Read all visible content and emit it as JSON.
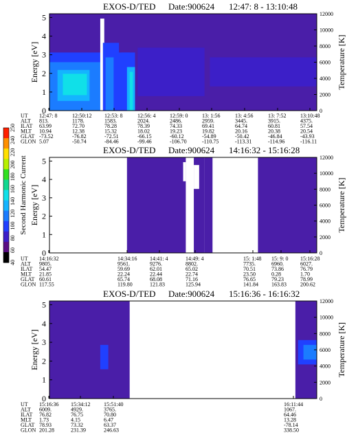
{
  "colorbar": {
    "label": "Second Harmonic Current",
    "ticks": [
      "40",
      "60",
      "80",
      "100",
      "120",
      "140",
      "160",
      "180",
      "200",
      "220",
      "240",
      "250"
    ],
    "colors": [
      "#000000",
      "#5a0e84",
      "#3c1fc8",
      "#2040ff",
      "#1b7cff",
      "#14b4ff",
      "#10e0e8",
      "#10d890",
      "#30e020",
      "#b8f000",
      "#ffe000",
      "#ff9000",
      "#ff2000"
    ]
  },
  "chart_data": [
    {
      "type": "heatmap",
      "title": "EXOS-D/TED",
      "date": "Date:900624",
      "time_range": "12:47: 8 - 13:10:48",
      "ylabel": "Energy [eV]",
      "y2label": "Temperature [K]",
      "y_ticks": [
        "0",
        "1",
        "2",
        "3",
        "4",
        "5"
      ],
      "ylim": [
        0,
        5.2
      ],
      "y2_ticks": [
        "0",
        "2000",
        "4000",
        "6000",
        "8000",
        "10000",
        "12000"
      ],
      "y2lim": [
        0,
        12000
      ],
      "orbit_rows": [
        "UT",
        "ALT",
        "ILAT",
        "MLT",
        "GLAT",
        "GLON"
      ],
      "orbit_columns": [
        {
          "values": [
            "12:47: 8",
            "813.",
            "63.99",
            "10.94",
            "-73.52",
            "5.07"
          ]
        },
        {
          "values": [
            "12:50:12",
            "1178.",
            "72.70",
            "12.38",
            "-76.82",
            "-50.74"
          ]
        },
        {
          "values": [
            "12:53: 8",
            "1583.",
            "78.28",
            "15.32",
            "-72.51",
            "-84.46"
          ]
        },
        {
          "values": [
            "12:56: 4",
            "2024.",
            "78.39",
            "18.02",
            "-66.15",
            "-99.46"
          ]
        },
        {
          "values": [
            "12:59: 0",
            "2486.",
            "74.33",
            "19.23",
            "-60.12",
            "-106.70"
          ]
        },
        {
          "values": [
            "13: 1:56",
            "2959.",
            "69.41",
            "19.82",
            "-54.89",
            "-110.75"
          ]
        },
        {
          "values": [
            "13: 4:56",
            "3445.",
            "64.74",
            "20.16",
            "-50.42",
            "-113.31"
          ]
        },
        {
          "values": [
            "13: 7:52",
            "3915.",
            "60.81",
            "20.38",
            "-46.84",
            "-114.96"
          ]
        },
        {
          "values": [
            "13:10:48",
            "4375.",
            "57.54",
            "20.54",
            "-43.93",
            "-116.11"
          ]
        }
      ]
    },
    {
      "type": "heatmap",
      "title": "EXOS-D/TED",
      "date": "Date:900624",
      "time_range": "14:16:32 - 15:16:28",
      "ylabel": "Energy [eV]",
      "y2label": "Temperature [K]",
      "y_ticks": [
        "0",
        "1",
        "2",
        "3",
        "4",
        "5"
      ],
      "ylim": [
        0,
        5.2
      ],
      "y2_ticks": [
        "0",
        "2000",
        "4000",
        "6000",
        "8000",
        "10000",
        "12000"
      ],
      "y2lim": [
        0,
        12000
      ],
      "orbit_rows": [
        "UT",
        "ALT",
        "ILAT",
        "MLT",
        "GLAT",
        "GLON"
      ],
      "orbit_columns": [
        {
          "values": [
            "14:16:32",
            "9805.",
            "54.47",
            "21.85",
            "60.61",
            "117.55"
          ]
        },
        {
          "values": [
            "14:34:16",
            "9561.",
            "59.69",
            "22.24",
            "65.74",
            "119.80"
          ]
        },
        {
          "values": [
            "14:41: 4",
            "9276.",
            "62.01",
            "22.44",
            "68.08",
            "121.83"
          ]
        },
        {
          "values": [
            "14:49: 4",
            "8802.",
            "65.02",
            "22.74",
            "71.16",
            "125.94"
          ]
        },
        {
          "values": [
            "15: 1:48",
            "7735.",
            "70.51",
            "23.50",
            "76.65",
            "141.84"
          ]
        },
        {
          "values": [
            "15: 9: 0",
            "6960.",
            "73.86",
            "0.28",
            "79.23",
            "163.83"
          ]
        },
        {
          "values": [
            "15:16:28",
            "6027.",
            "76.79",
            "1.70",
            "78.99",
            "200.62"
          ]
        }
      ]
    },
    {
      "type": "heatmap",
      "title": "EXOS-D/TED",
      "date": "Date:900624",
      "time_range": "15:16:36 - 16:16:32",
      "ylabel": "Energy [eV]",
      "y2label": "Temperature [K]",
      "y_ticks": [
        "0",
        "1",
        "2",
        "3",
        "4",
        "5"
      ],
      "ylim": [
        0,
        5.2
      ],
      "y2_ticks": [
        "0",
        "2000",
        "4000",
        "6000",
        "8000",
        "10000",
        "12000"
      ],
      "y2lim": [
        0,
        12000
      ],
      "orbit_rows": [
        "UT",
        "ALT",
        "ILAT",
        "MLT",
        "GLAT",
        "GLON"
      ],
      "orbit_columns": [
        {
          "values": [
            "15:16:36",
            "6009.",
            "76.82",
            "1.73",
            "78.93",
            "201.28"
          ]
        },
        {
          "values": [
            "15:34:12",
            "4929.",
            "76.75",
            "4.15",
            "73.32",
            "231.39"
          ]
        },
        {
          "values": [
            "15:51:40",
            "3765.",
            "70.80",
            "6.47",
            "63.37",
            "246.63"
          ]
        },
        {
          "values": [
            "16:11:44",
            "1067.",
            "64.46",
            "13.28",
            "-78.14",
            "338.50"
          ]
        }
      ]
    }
  ]
}
